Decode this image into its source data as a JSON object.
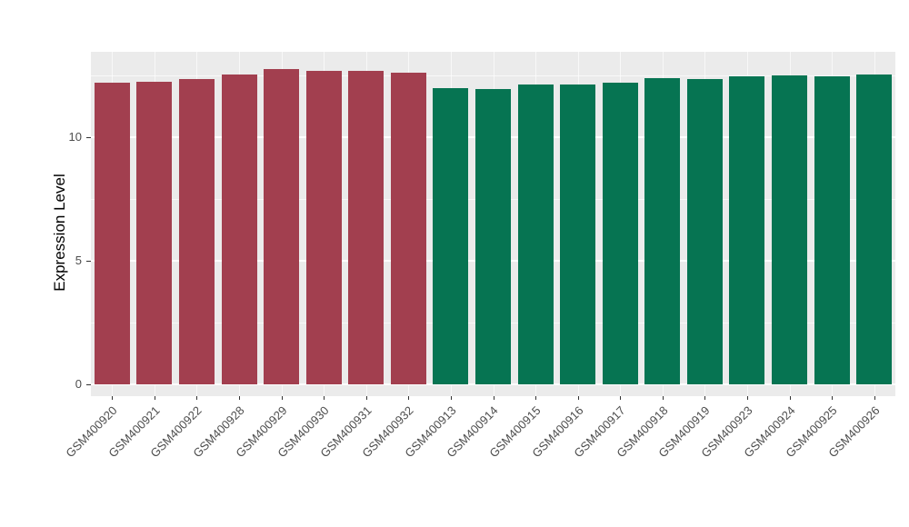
{
  "chart_data": {
    "type": "bar",
    "title": "",
    "xlabel": "",
    "ylabel": "Expression Level",
    "ylim": [
      0,
      13.5
    ],
    "yticks": [
      0,
      5,
      10
    ],
    "yticks_minor": [
      2.5,
      7.5,
      12.5
    ],
    "grid": true,
    "legend": "none",
    "panel_background": "#EBEBEB",
    "grid_color": "#FFFFFF",
    "tick_label_color": "#4D4D4D",
    "categories": [
      "GSM400920",
      "GSM400921",
      "GSM400922",
      "GSM400928",
      "GSM400929",
      "GSM400930",
      "GSM400931",
      "GSM400932",
      "GSM400913",
      "GSM400914",
      "GSM400915",
      "GSM400916",
      "GSM400917",
      "GSM400918",
      "GSM400919",
      "GSM400923",
      "GSM400924",
      "GSM400925",
      "GSM400926"
    ],
    "values": [
      12.2,
      12.25,
      12.35,
      12.55,
      12.75,
      12.7,
      12.7,
      12.6,
      12.0,
      11.95,
      12.15,
      12.15,
      12.2,
      12.4,
      12.35,
      12.45,
      12.5,
      12.45,
      12.55
    ],
    "groups": [
      "maroon",
      "maroon",
      "maroon",
      "maroon",
      "maroon",
      "maroon",
      "maroon",
      "maroon",
      "green",
      "green",
      "green",
      "green",
      "green",
      "green",
      "green",
      "green",
      "green",
      "green",
      "green"
    ],
    "colors": {
      "maroon": "#A23F4F",
      "green": "#067452"
    }
  }
}
